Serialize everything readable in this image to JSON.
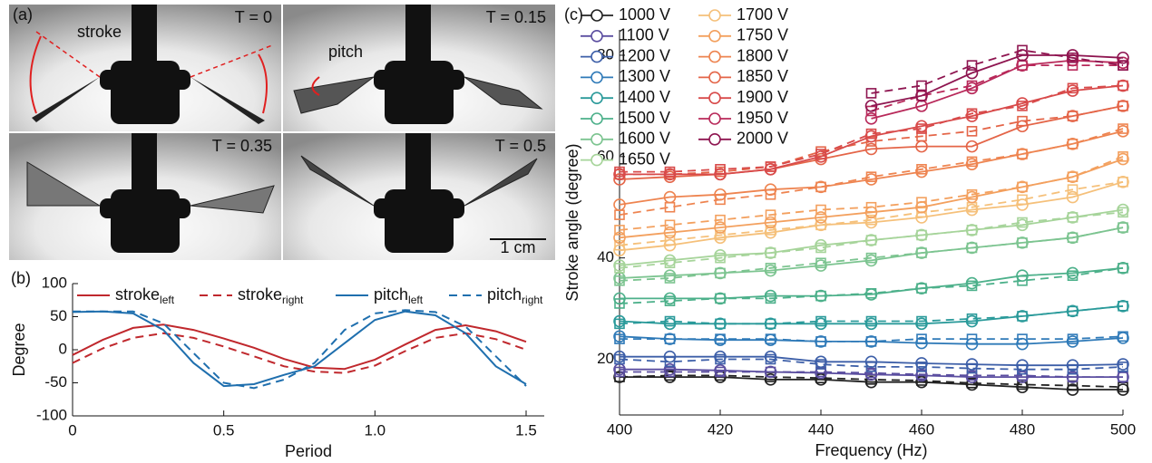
{
  "photos": {
    "label": "(a)",
    "frames": [
      "T = 0",
      "T = 0.15",
      "T = 0.35",
      "T = 0.5"
    ],
    "stroke_label": "stroke",
    "pitch_label": "pitch",
    "scale_bar": "1 cm"
  },
  "chart_data": [
    {
      "type": "line",
      "panel_label": "(b)",
      "xlabel": "Period",
      "ylabel": "Degree",
      "x": [
        0,
        0.1,
        0.2,
        0.3,
        0.4,
        0.5,
        0.6,
        0.7,
        0.8,
        0.9,
        1.0,
        1.1,
        1.2,
        1.3,
        1.4,
        1.5
      ],
      "xlim": [
        0,
        1.56
      ],
      "ylim": [
        -100,
        100
      ],
      "xticks": [
        0,
        0.5,
        {
          "value": 1,
          "label": "1.0"
        },
        1.5
      ],
      "yticks": [
        -100,
        -50,
        0,
        50,
        100
      ],
      "series": [
        {
          "name": "stroke",
          "name_subscript": "left",
          "color": "#c0282d",
          "dashed": false,
          "values": [
            -8,
            15,
            33,
            38,
            30,
            17,
            3,
            -14,
            -27,
            -29,
            -15,
            8,
            30,
            37,
            28,
            12
          ]
        },
        {
          "name": "stroke",
          "name_subscript": "right",
          "color": "#c0282d",
          "dashed": true,
          "values": [
            -20,
            2,
            18,
            25,
            18,
            5,
            -10,
            -25,
            -33,
            -35,
            -24,
            -2,
            18,
            25,
            16,
            0
          ]
        },
        {
          "name": "pitch",
          "name_subscript": "left",
          "color": "#1f6fae",
          "dashed": false,
          "values": [
            57,
            58,
            55,
            30,
            -20,
            -55,
            -52,
            -38,
            -25,
            10,
            45,
            58,
            52,
            25,
            -25,
            -52
          ]
        },
        {
          "name": "pitch",
          "name_subscript": "right",
          "color": "#1f6fae",
          "dashed": true,
          "values": [
            58,
            58,
            58,
            40,
            -5,
            -50,
            -58,
            -45,
            -20,
            30,
            55,
            60,
            57,
            35,
            -10,
            -55
          ]
        }
      ]
    },
    {
      "type": "line",
      "panel_label": "(c)",
      "xlabel": "Frequency (Hz)",
      "ylabel": "Stroke angle (degree)",
      "x": [
        400,
        410,
        420,
        430,
        440,
        450,
        460,
        470,
        480,
        490,
        500
      ],
      "xlim": [
        400,
        500
      ],
      "ylim": [
        9,
        85
      ],
      "xticks": [
        400,
        420,
        440,
        460,
        480,
        500
      ],
      "yticks": [
        20,
        40,
        60,
        80
      ],
      "series": [
        {
          "name": "1000 V",
          "color": "#222222",
          "values": [
            16.5,
            16.5,
            16.5,
            16,
            16,
            15.5,
            15.5,
            15,
            14.5,
            14,
            14
          ],
          "dashed_values": [
            16.5,
            16.8,
            16.8,
            16.5,
            16.3,
            16,
            15.8,
            15.3,
            15,
            14.8,
            14.5
          ]
        },
        {
          "name": "1100 V",
          "color": "#5b4ea0",
          "values": [
            18,
            18,
            17.8,
            17.5,
            17.3,
            17,
            16.8,
            16.5,
            16.5,
            16.5,
            16.5
          ],
          "dashed_values": [
            17.5,
            17.5,
            17.5,
            17.5,
            17.5,
            17.3,
            17,
            16.8,
            16.8,
            16.5,
            16.5
          ]
        },
        {
          "name": "1200 V",
          "color": "#3d5fa8",
          "values": [
            20.5,
            20.5,
            20.5,
            20.5,
            19.5,
            19.5,
            19.2,
            19,
            18.8,
            18.8,
            19
          ],
          "dashed_values": [
            20,
            19.5,
            20,
            20,
            19,
            18.5,
            18.5,
            18.2,
            18,
            18,
            18.5
          ]
        },
        {
          "name": "1300 V",
          "color": "#2f7ab8",
          "values": [
            24.5,
            24,
            23.8,
            23.8,
            23.5,
            23.5,
            23.2,
            23,
            23,
            23.5,
            24.2
          ],
          "dashed_values": [
            24,
            24,
            24,
            24,
            23.5,
            23.5,
            24,
            24,
            24,
            24,
            24.5
          ]
        },
        {
          "name": "1400 V",
          "color": "#2a9a9a",
          "values": [
            27.5,
            27,
            27,
            27,
            27,
            27,
            27,
            27.5,
            28.5,
            29.5,
            30.5
          ],
          "dashed_values": [
            27,
            27.5,
            27,
            27,
            27.5,
            27.5,
            27.5,
            28,
            28.5,
            29.5,
            30.5
          ]
        },
        {
          "name": "1500 V",
          "color": "#4cb08a",
          "values": [
            32,
            32,
            32,
            32.5,
            32.5,
            32.8,
            34,
            35,
            36.5,
            37,
            38
          ],
          "dashed_values": [
            31,
            31.5,
            32,
            32,
            32.5,
            33,
            34,
            34.5,
            35.5,
            36.5,
            38
          ]
        },
        {
          "name": "1600 V",
          "color": "#7cc490",
          "values": [
            36,
            36.5,
            37,
            37.5,
            38.5,
            39.5,
            41,
            42,
            43,
            44,
            46
          ],
          "dashed_values": [
            35.5,
            36,
            37,
            38,
            39,
            40,
            41,
            42,
            43,
            44,
            46
          ]
        },
        {
          "name": "1650 V",
          "color": "#a6d49a",
          "values": [
            38.5,
            39.5,
            40.5,
            41,
            42.5,
            43.5,
            44.5,
            45.5,
            46.5,
            48,
            49.5
          ],
          "dashed_values": [
            38,
            39,
            40,
            41,
            42,
            43.5,
            44.5,
            45.5,
            47,
            48,
            49
          ]
        },
        {
          "name": "1700 V",
          "color": "#f5c07a",
          "values": [
            41.5,
            42.5,
            44,
            45,
            46.5,
            47,
            48,
            49.5,
            50.5,
            52,
            55
          ],
          "dashed_values": [
            42.5,
            43.5,
            44.5,
            45.5,
            46.5,
            47.5,
            49,
            50,
            51.5,
            53.5,
            55
          ]
        },
        {
          "name": "1750 V",
          "color": "#f3a05e",
          "values": [
            44,
            45,
            46,
            47,
            48,
            49,
            50,
            52,
            54,
            56,
            59.5
          ],
          "dashed_values": [
            45.5,
            46.5,
            47.5,
            48.5,
            49.5,
            50,
            51,
            52.5,
            54,
            56,
            60
          ]
        },
        {
          "name": "1800 V",
          "color": "#ee8450",
          "values": [
            50.5,
            52,
            52.5,
            53.5,
            54,
            55.5,
            57,
            58.5,
            60.5,
            62.5,
            65
          ],
          "dashed_values": [
            48.5,
            50,
            51.5,
            52.5,
            54,
            56,
            57.5,
            59,
            60.5,
            62.5,
            65.5
          ]
        },
        {
          "name": "1850 V",
          "color": "#e46548",
          "values": [
            55.5,
            56,
            56.5,
            57.5,
            59.5,
            61.5,
            62,
            62,
            66,
            68,
            70
          ],
          "dashed_values": [
            56.5,
            56.5,
            57,
            58,
            61,
            63,
            64,
            65,
            67,
            68,
            70
          ]
        },
        {
          "name": "1900 V",
          "color": "#d84a4a",
          "values": [
            56.5,
            56.5,
            56.5,
            57.5,
            60,
            64,
            66,
            68,
            70.5,
            73,
            74
          ],
          "dashed_values": [
            57,
            57,
            57.5,
            58,
            60.5,
            64.5,
            65.5,
            68.5,
            70,
            73.5,
            74
          ]
        },
        {
          "name": "1950 V",
          "color": "#b8295a",
          "values": [
            null,
            null,
            null,
            null,
            null,
            67.5,
            70,
            73.5,
            78,
            79,
            78.5
          ],
          "dashed_values": [
            null,
            null,
            null,
            null,
            null,
            69,
            72,
            74,
            78,
            78,
            78
          ]
        },
        {
          "name": "2000 V",
          "color": "#8e1550",
          "values": [
            null,
            null,
            null,
            null,
            null,
            70,
            72,
            76.5,
            80,
            80,
            79.5
          ],
          "dashed_values": [
            null,
            null,
            null,
            null,
            null,
            72.5,
            74,
            78,
            81,
            79.5,
            78
          ]
        }
      ]
    }
  ]
}
